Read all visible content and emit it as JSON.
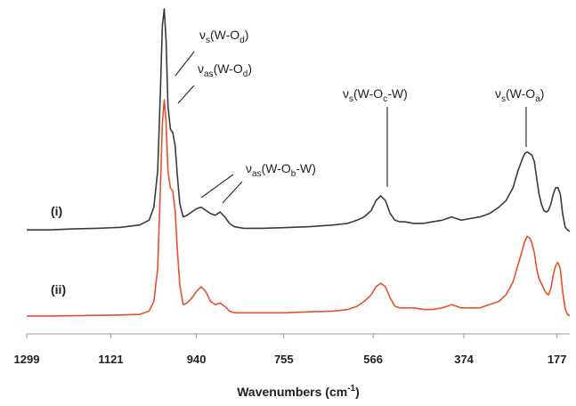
{
  "chart_data": {
    "type": "line",
    "x_label": [
      "Wavenumbers (cm",
      "-1",
      ")"
    ],
    "xlim": [
      1299,
      150
    ],
    "xticks": [
      1299,
      1121,
      940,
      755,
      566,
      374,
      177
    ],
    "ylim": [
      0,
      100
    ],
    "x": [
      1299,
      1250,
      1200,
      1150,
      1100,
      1060,
      1040,
      1030,
      1022,
      1016,
      1012,
      1008,
      1004,
      1000,
      995,
      990,
      985,
      980,
      975,
      968,
      960,
      950,
      940,
      930,
      920,
      910,
      900,
      890,
      880,
      870,
      860,
      840,
      800,
      750,
      700,
      650,
      620,
      600,
      585,
      570,
      560,
      550,
      540,
      530,
      520,
      510,
      500,
      480,
      460,
      440,
      420,
      400,
      380,
      360,
      340,
      320,
      300,
      285,
      270,
      260,
      250,
      245,
      240,
      235,
      230,
      225,
      220,
      215,
      210,
      205,
      200,
      195,
      190,
      185,
      180,
      175,
      170,
      165,
      160,
      155,
      150
    ],
    "series": [
      {
        "name": "(i)",
        "color": "#3a3a3a",
        "values": [
          32,
          32,
          32.3,
          32.5,
          32.8,
          33.5,
          35,
          39,
          50,
          75,
          95,
          100,
          90,
          70,
          63,
          62,
          58,
          48,
          40,
          36,
          36.5,
          37.5,
          38.5,
          39,
          38,
          37,
          36.5,
          37.5,
          36,
          34,
          33,
          32.5,
          32.5,
          32.7,
          33,
          33.5,
          34,
          35,
          36,
          38,
          41,
          42.5,
          41,
          37,
          35,
          34.5,
          34.5,
          34,
          34,
          34.5,
          35,
          36,
          35,
          35.5,
          36,
          37,
          39,
          41,
          45,
          50,
          54,
          55.5,
          56,
          55.5,
          55,
          53,
          48,
          43,
          40,
          38,
          37.5,
          38,
          40,
          43,
          45,
          45,
          43,
          37,
          33,
          32,
          31.5
        ]
      },
      {
        "name": "(ii)",
        "color": "#e8502a",
        "values": [
          5.5,
          5.5,
          5.6,
          5.7,
          5.8,
          6,
          7,
          10,
          20,
          45,
          65,
          72,
          65,
          50,
          45,
          44,
          38,
          25,
          15,
          9,
          9.5,
          11,
          13,
          14.5,
          13,
          10,
          9,
          9.5,
          8.5,
          7,
          6.5,
          6.5,
          6.5,
          6.5,
          6.8,
          7,
          7.5,
          8.5,
          10,
          12,
          14.5,
          15.6,
          14.5,
          11,
          8.5,
          8,
          8,
          8,
          7.5,
          7.5,
          8,
          9,
          8,
          8,
          8,
          9,
          10,
          12,
          16,
          21,
          26,
          28.5,
          30,
          29.5,
          28,
          25,
          20,
          17,
          15.5,
          14,
          12.5,
          12,
          14,
          18,
          21,
          22,
          20,
          13,
          8,
          6,
          5.5
        ]
      }
    ],
    "annotations": [
      [
        "ν",
        "s",
        "(W-O",
        "d",
        ")"
      ],
      [
        "ν",
        "as",
        "(W-O",
        "d",
        ")"
      ],
      [
        "ν",
        "as",
        "(W-O",
        "b",
        "-W)"
      ],
      [
        "ν",
        "s",
        "(W-O",
        "c",
        "-W)"
      ],
      [
        "ν",
        "s",
        "(W-O",
        "a",
        ")"
      ]
    ]
  }
}
